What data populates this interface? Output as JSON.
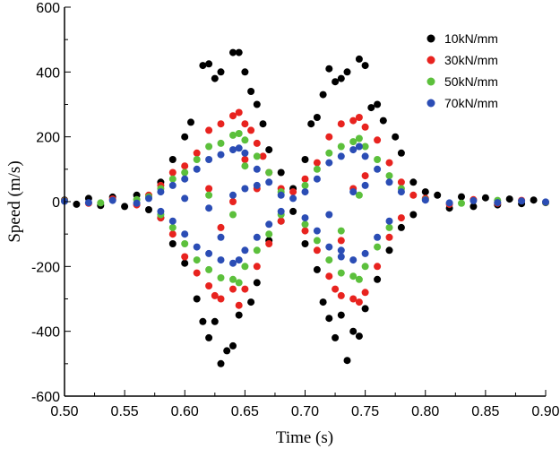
{
  "chart_data": {
    "type": "scatter",
    "title": "",
    "xlabel": "Time (s)",
    "ylabel": "Speed (m/s)",
    "xlim": [
      0.5,
      0.9
    ],
    "ylim": [
      -600,
      600
    ],
    "xticks": [
      "0.50",
      "0.55",
      "0.60",
      "0.65",
      "0.70",
      "0.75",
      "0.80",
      "0.85",
      "0.90"
    ],
    "yticks": [
      "600",
      "400",
      "200",
      "0",
      "-200",
      "-400",
      "-600"
    ],
    "legend_position": "top-right",
    "series": [
      {
        "name": "10kN/mm",
        "color": "#000000",
        "points": [
          [
            0.5,
            5
          ],
          [
            0.51,
            -8
          ],
          [
            0.52,
            10
          ],
          [
            0.53,
            -12
          ],
          [
            0.54,
            14
          ],
          [
            0.55,
            -15
          ],
          [
            0.56,
            20
          ],
          [
            0.57,
            -25
          ],
          [
            0.58,
            60
          ],
          [
            0.59,
            130
          ],
          [
            0.6,
            200
          ],
          [
            0.605,
            245
          ],
          [
            0.615,
            420
          ],
          [
            0.62,
            425
          ],
          [
            0.625,
            380
          ],
          [
            0.63,
            400
          ],
          [
            0.64,
            460
          ],
          [
            0.645,
            460
          ],
          [
            0.65,
            400
          ],
          [
            0.655,
            340
          ],
          [
            0.66,
            300
          ],
          [
            0.665,
            240
          ],
          [
            0.67,
            160
          ],
          [
            0.68,
            90
          ],
          [
            0.69,
            40
          ],
          [
            0.7,
            130
          ],
          [
            0.705,
            240
          ],
          [
            0.71,
            260
          ],
          [
            0.715,
            330
          ],
          [
            0.72,
            410
          ],
          [
            0.725,
            370
          ],
          [
            0.73,
            380
          ],
          [
            0.735,
            400
          ],
          [
            0.745,
            440
          ],
          [
            0.75,
            420
          ],
          [
            0.755,
            290
          ],
          [
            0.76,
            300
          ],
          [
            0.765,
            250
          ],
          [
            0.775,
            200
          ],
          [
            0.78,
            150
          ],
          [
            0.79,
            60
          ],
          [
            0.8,
            30
          ],
          [
            0.58,
            -50
          ],
          [
            0.59,
            -130
          ],
          [
            0.6,
            -190
          ],
          [
            0.61,
            -300
          ],
          [
            0.615,
            -370
          ],
          [
            0.62,
            -420
          ],
          [
            0.625,
            -370
          ],
          [
            0.63,
            -500
          ],
          [
            0.635,
            -460
          ],
          [
            0.64,
            -445
          ],
          [
            0.645,
            -350
          ],
          [
            0.655,
            -310
          ],
          [
            0.66,
            -250
          ],
          [
            0.67,
            -120
          ],
          [
            0.68,
            -60
          ],
          [
            0.69,
            -30
          ],
          [
            0.7,
            -130
          ],
          [
            0.71,
            -210
          ],
          [
            0.715,
            -310
          ],
          [
            0.72,
            -360
          ],
          [
            0.725,
            -420
          ],
          [
            0.73,
            -350
          ],
          [
            0.735,
            -490
          ],
          [
            0.74,
            -400
          ],
          [
            0.745,
            -415
          ],
          [
            0.75,
            -330
          ],
          [
            0.76,
            -240
          ],
          [
            0.77,
            -150
          ],
          [
            0.78,
            -80
          ],
          [
            0.79,
            -40
          ],
          [
            0.81,
            20
          ],
          [
            0.82,
            -20
          ],
          [
            0.83,
            15
          ],
          [
            0.84,
            -15
          ],
          [
            0.85,
            12
          ],
          [
            0.86,
            -10
          ],
          [
            0.87,
            8
          ],
          [
            0.88,
            -6
          ],
          [
            0.89,
            5
          ],
          [
            0.9,
            -3
          ]
        ]
      },
      {
        "name": "30kN/mm",
        "color": "#e8231f",
        "points": [
          [
            0.5,
            3
          ],
          [
            0.52,
            -5
          ],
          [
            0.54,
            8
          ],
          [
            0.56,
            -10
          ],
          [
            0.57,
            20
          ],
          [
            0.58,
            50
          ],
          [
            0.59,
            90
          ],
          [
            0.6,
            110
          ],
          [
            0.61,
            150
          ],
          [
            0.62,
            220
          ],
          [
            0.63,
            240
          ],
          [
            0.64,
            265
          ],
          [
            0.645,
            275
          ],
          [
            0.65,
            240
          ],
          [
            0.655,
            220
          ],
          [
            0.66,
            180
          ],
          [
            0.665,
            140
          ],
          [
            0.67,
            90
          ],
          [
            0.68,
            40
          ],
          [
            0.69,
            30
          ],
          [
            0.7,
            70
          ],
          [
            0.71,
            120
          ],
          [
            0.72,
            200
          ],
          [
            0.73,
            240
          ],
          [
            0.74,
            250
          ],
          [
            0.745,
            260
          ],
          [
            0.75,
            230
          ],
          [
            0.76,
            190
          ],
          [
            0.77,
            120
          ],
          [
            0.78,
            60
          ],
          [
            0.79,
            20
          ],
          [
            0.62,
            40
          ],
          [
            0.63,
            -80
          ],
          [
            0.64,
            0
          ],
          [
            0.65,
            130
          ],
          [
            0.66,
            40
          ],
          [
            0.73,
            -120
          ],
          [
            0.74,
            40
          ],
          [
            0.75,
            80
          ],
          [
            0.58,
            -50
          ],
          [
            0.59,
            -100
          ],
          [
            0.6,
            -170
          ],
          [
            0.61,
            -220
          ],
          [
            0.62,
            -260
          ],
          [
            0.625,
            -290
          ],
          [
            0.63,
            -300
          ],
          [
            0.64,
            -270
          ],
          [
            0.645,
            -320
          ],
          [
            0.65,
            -270
          ],
          [
            0.66,
            -200
          ],
          [
            0.67,
            -130
          ],
          [
            0.68,
            -60
          ],
          [
            0.7,
            -90
          ],
          [
            0.71,
            -150
          ],
          [
            0.72,
            -230
          ],
          [
            0.725,
            -270
          ],
          [
            0.73,
            -290
          ],
          [
            0.74,
            -300
          ],
          [
            0.745,
            -310
          ],
          [
            0.75,
            -280
          ],
          [
            0.76,
            -200
          ],
          [
            0.77,
            -110
          ],
          [
            0.78,
            -50
          ],
          [
            0.8,
            10
          ],
          [
            0.82,
            -8
          ],
          [
            0.84,
            6
          ],
          [
            0.86,
            -5
          ],
          [
            0.88,
            4
          ],
          [
            0.9,
            -2
          ]
        ]
      },
      {
        "name": "50kN/mm",
        "color": "#5cc03c",
        "points": [
          [
            0.5,
            2
          ],
          [
            0.53,
            -4
          ],
          [
            0.56,
            6
          ],
          [
            0.57,
            15
          ],
          [
            0.58,
            40
          ],
          [
            0.59,
            70
          ],
          [
            0.6,
            90
          ],
          [
            0.61,
            130
          ],
          [
            0.62,
            170
          ],
          [
            0.63,
            180
          ],
          [
            0.64,
            205
          ],
          [
            0.645,
            210
          ],
          [
            0.65,
            190
          ],
          [
            0.66,
            140
          ],
          [
            0.67,
            90
          ],
          [
            0.68,
            30
          ],
          [
            0.7,
            50
          ],
          [
            0.71,
            100
          ],
          [
            0.72,
            150
          ],
          [
            0.73,
            170
          ],
          [
            0.74,
            185
          ],
          [
            0.745,
            195
          ],
          [
            0.75,
            170
          ],
          [
            0.76,
            130
          ],
          [
            0.77,
            80
          ],
          [
            0.78,
            40
          ],
          [
            0.62,
            20
          ],
          [
            0.64,
            -40
          ],
          [
            0.65,
            110
          ],
          [
            0.73,
            -90
          ],
          [
            0.745,
            20
          ],
          [
            0.58,
            -40
          ],
          [
            0.59,
            -80
          ],
          [
            0.6,
            -130
          ],
          [
            0.61,
            -180
          ],
          [
            0.62,
            -210
          ],
          [
            0.63,
            -235
          ],
          [
            0.64,
            -240
          ],
          [
            0.645,
            -250
          ],
          [
            0.65,
            -200
          ],
          [
            0.66,
            -150
          ],
          [
            0.67,
            -100
          ],
          [
            0.68,
            -40
          ],
          [
            0.7,
            -70
          ],
          [
            0.71,
            -120
          ],
          [
            0.72,
            -180
          ],
          [
            0.73,
            -220
          ],
          [
            0.74,
            -230
          ],
          [
            0.745,
            -240
          ],
          [
            0.75,
            -200
          ],
          [
            0.76,
            -140
          ],
          [
            0.77,
            -80
          ],
          [
            0.8,
            6
          ],
          [
            0.83,
            -5
          ],
          [
            0.86,
            4
          ],
          [
            0.9,
            -2
          ]
        ]
      },
      {
        "name": "70kN/mm",
        "color": "#2b4db5",
        "points": [
          [
            0.5,
            1
          ],
          [
            0.52,
            -3
          ],
          [
            0.54,
            4
          ],
          [
            0.56,
            -5
          ],
          [
            0.57,
            10
          ],
          [
            0.58,
            30
          ],
          [
            0.59,
            50
          ],
          [
            0.6,
            70
          ],
          [
            0.61,
            100
          ],
          [
            0.62,
            130
          ],
          [
            0.63,
            145
          ],
          [
            0.64,
            160
          ],
          [
            0.645,
            165
          ],
          [
            0.65,
            150
          ],
          [
            0.66,
            100
          ],
          [
            0.67,
            60
          ],
          [
            0.68,
            20
          ],
          [
            0.69,
            10
          ],
          [
            0.7,
            30
          ],
          [
            0.71,
            70
          ],
          [
            0.72,
            120
          ],
          [
            0.73,
            140
          ],
          [
            0.74,
            160
          ],
          [
            0.745,
            170
          ],
          [
            0.75,
            140
          ],
          [
            0.76,
            100
          ],
          [
            0.77,
            60
          ],
          [
            0.78,
            30
          ],
          [
            0.6,
            10
          ],
          [
            0.62,
            -20
          ],
          [
            0.63,
            -110
          ],
          [
            0.64,
            20
          ],
          [
            0.65,
            40
          ],
          [
            0.66,
            50
          ],
          [
            0.72,
            -40
          ],
          [
            0.73,
            -150
          ],
          [
            0.74,
            30
          ],
          [
            0.75,
            50
          ],
          [
            0.58,
            -30
          ],
          [
            0.59,
            -60
          ],
          [
            0.6,
            -100
          ],
          [
            0.61,
            -140
          ],
          [
            0.62,
            -160
          ],
          [
            0.63,
            -180
          ],
          [
            0.64,
            -190
          ],
          [
            0.645,
            -180
          ],
          [
            0.65,
            -150
          ],
          [
            0.66,
            -110
          ],
          [
            0.67,
            -70
          ],
          [
            0.68,
            -30
          ],
          [
            0.7,
            -50
          ],
          [
            0.71,
            -90
          ],
          [
            0.72,
            -140
          ],
          [
            0.73,
            -170
          ],
          [
            0.74,
            -180
          ],
          [
            0.75,
            -160
          ],
          [
            0.76,
            -110
          ],
          [
            0.77,
            -60
          ],
          [
            0.8,
            5
          ],
          [
            0.82,
            -4
          ],
          [
            0.84,
            3
          ],
          [
            0.86,
            -3
          ],
          [
            0.88,
            2
          ],
          [
            0.9,
            -1
          ]
        ]
      }
    ]
  }
}
